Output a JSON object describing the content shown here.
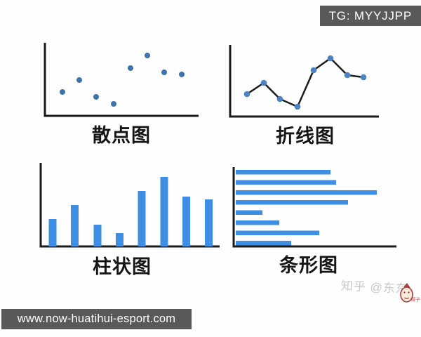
{
  "badge": {
    "label": "TG: MYYJJPP"
  },
  "footer": {
    "url": "www.now-huatihui-esport.com"
  },
  "watermark": {
    "text": "知乎 @东东",
    "mascot": "帽子"
  },
  "colors": {
    "axis": "#1b1b1b",
    "bar": "#3e8ee3",
    "scatter_dot": "#3d73ad",
    "line_dot": "#4c83c3",
    "line_stroke": "#1c1c1c"
  },
  "chart_data": [
    {
      "type": "scatter",
      "title": "散点图",
      "x": [
        1,
        2,
        3,
        4,
        5,
        6,
        7,
        8
      ],
      "values": [
        34,
        51,
        27,
        17,
        68,
        86,
        62,
        59
      ],
      "xlabel": "",
      "ylabel": "",
      "ylim": [
        0,
        104
      ],
      "grid": false,
      "legend": false
    },
    {
      "type": "line",
      "title": "折线图",
      "x": [
        1,
        2,
        3,
        4,
        5,
        6,
        7,
        8
      ],
      "values": [
        32,
        48,
        25,
        14,
        66,
        83,
        59,
        56
      ],
      "xlabel": "",
      "ylabel": "",
      "ylim": [
        0,
        102
      ],
      "grid": false,
      "legend": false
    },
    {
      "type": "bar",
      "title": "柱状图",
      "categories": [
        "1",
        "2",
        "3",
        "4",
        "5",
        "6",
        "7",
        "8"
      ],
      "values": [
        39,
        59,
        31,
        19,
        79,
        99,
        71,
        67
      ],
      "xlabel": "",
      "ylabel": "",
      "ylim": [
        0,
        119
      ],
      "grid": false,
      "legend": false
    },
    {
      "type": "bar",
      "orientation": "horizontal",
      "title": "条形图",
      "categories": [
        "1",
        "2",
        "3",
        "4",
        "5",
        "6",
        "7",
        "8"
      ],
      "values": [
        135,
        143,
        201,
        160,
        38,
        62,
        119,
        79
      ],
      "xlabel": "",
      "ylabel": "",
      "xlim": [
        0,
        229
      ],
      "grid": false,
      "legend": false
    }
  ]
}
